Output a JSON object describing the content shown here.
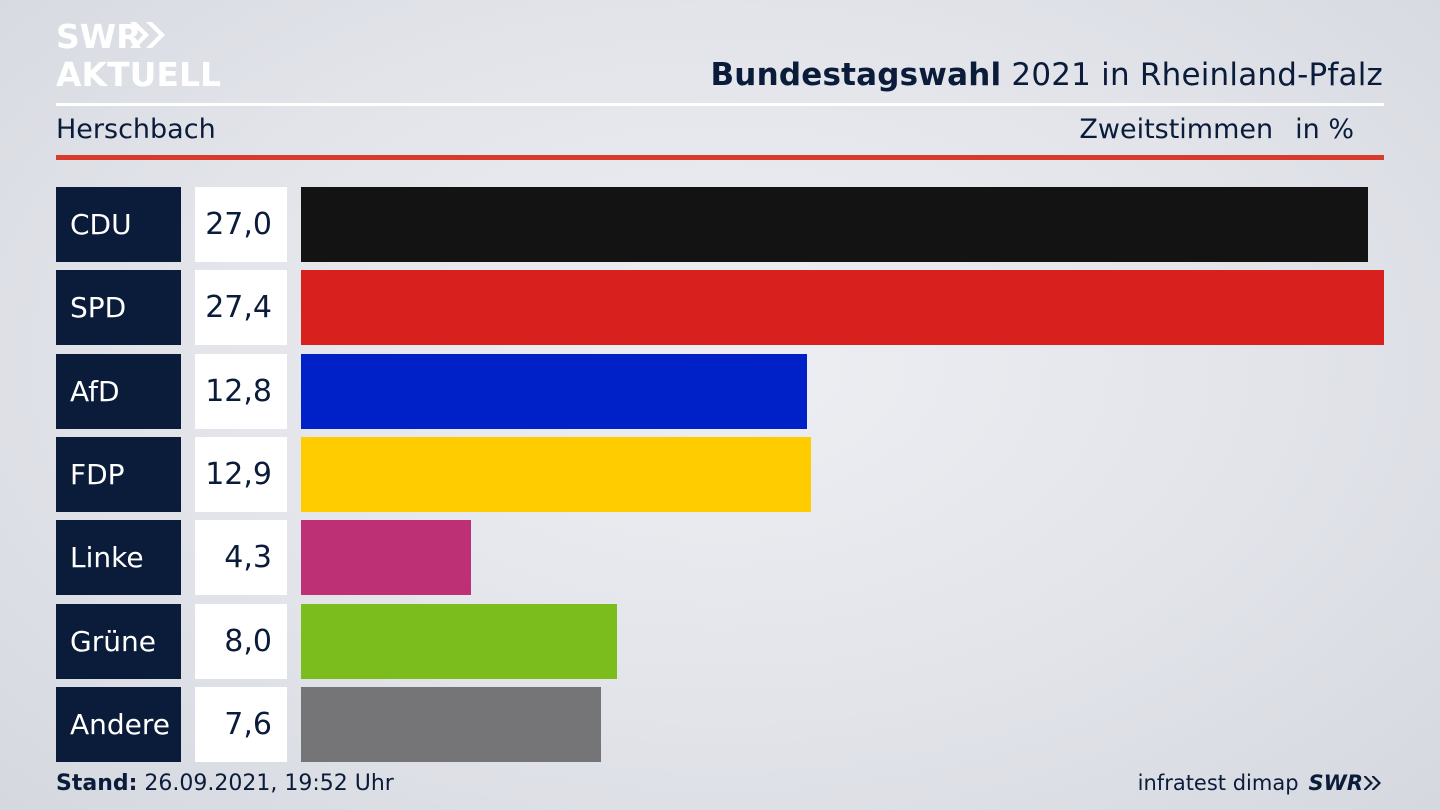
{
  "header": {
    "logo_line1": "SWR",
    "logo_line2": "AKTUELL",
    "title_bold": "Bundestagswahl",
    "title_rest": " 2021 in Rheinland-Pfalz",
    "region": "Herschbach",
    "vote_type": "Zweitstimmen",
    "unit": "in %"
  },
  "chart_data": {
    "type": "bar",
    "orientation": "horizontal",
    "categories": [
      "CDU",
      "SPD",
      "AfD",
      "FDP",
      "Linke",
      "Grüne",
      "Andere"
    ],
    "labels": [
      "27,0",
      "27,4",
      "12,8",
      "12,9",
      "4,3",
      "8,0",
      "7,6"
    ],
    "values": [
      27.0,
      27.4,
      12.8,
      12.9,
      4.3,
      8.0,
      7.6
    ],
    "colors": [
      "#131313",
      "#d8211f",
      "#0020c8",
      "#ffcc00",
      "#be3075",
      "#7abd1c",
      "#757578"
    ],
    "xlim": [
      0,
      27.4
    ]
  },
  "footer": {
    "stand_label": "Stand:",
    "stand_value": " 26.09.2021, 19:52 Uhr",
    "source": "infratest dimap",
    "brand": "SWR"
  },
  "colors": {
    "navy": "#0b1c3a",
    "accent_red": "#d83a2e"
  }
}
